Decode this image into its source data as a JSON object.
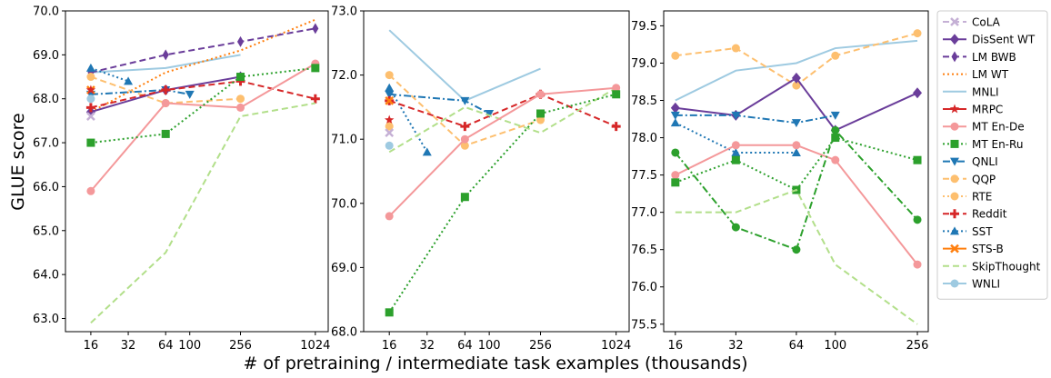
{
  "chart_data": {
    "type": "line",
    "ylabel": "GLUE score",
    "xlabel": "# of pretraining / intermediate task examples (thousands)",
    "x_scale": "log",
    "legend_placement": "right",
    "legend": [
      {
        "name": "CoLA",
        "color": "#c5b0d5",
        "dash": "dashed",
        "marker": "x"
      },
      {
        "name": "DisSent WT",
        "color": "#6a3d9a",
        "dash": "solid",
        "marker": "diamond"
      },
      {
        "name": "LM BWB",
        "color": "#6a3d9a",
        "dash": "dashed",
        "marker": "thin_diamond"
      },
      {
        "name": "LM WT",
        "color": "#ff7f0e",
        "dash": "dotted",
        "marker": "none"
      },
      {
        "name": "MNLI",
        "color": "#9ecae1",
        "dash": "solid",
        "marker": "none"
      },
      {
        "name": "MRPC",
        "color": "#d62728",
        "dash": "solid",
        "marker": "star"
      },
      {
        "name": "MT En-De",
        "color": "#f4989a",
        "dash": "solid",
        "marker": "circle"
      },
      {
        "name": "MT En-Ru",
        "color": "#2ca02c",
        "dash": "dotted",
        "marker": "square"
      },
      {
        "name": "QNLI",
        "color": "#1f77b4",
        "dash": "dashdot",
        "marker": "triangle_down"
      },
      {
        "name": "QQP",
        "color": "#fdbf6f",
        "dash": "dashed",
        "marker": "circle"
      },
      {
        "name": "RTE",
        "color": "#fdbf6f",
        "dash": "dotted",
        "marker": "circle"
      },
      {
        "name": "Reddit",
        "color": "#d62728",
        "dash": "dashed",
        "marker": "plus"
      },
      {
        "name": "SST",
        "color": "#1f77b4",
        "dash": "dotted",
        "marker": "triangle_up"
      },
      {
        "name": "STS-B",
        "color": "#ff7f0e",
        "dash": "solid",
        "marker": "x"
      },
      {
        "name": "SkipThought",
        "color": "#b2df8a",
        "dash": "dashed",
        "marker": "none"
      },
      {
        "name": "WNLI",
        "color": "#9ecae1",
        "dash": "solid",
        "marker": "circle"
      }
    ],
    "panels": [
      {
        "xticks": [
          16,
          32,
          64,
          100,
          256,
          1024
        ],
        "xlim": [
          10,
          1300
        ],
        "ylim": [
          62.7,
          70.0
        ],
        "yticks": [
          63.0,
          64.0,
          65.0,
          66.0,
          67.0,
          68.0,
          69.0,
          70.0
        ],
        "series": [
          {
            "ref": "MNLI",
            "x": [
              16,
              64,
              256
            ],
            "y": [
              68.6,
              68.7,
              69.0
            ]
          },
          {
            "ref": "LM WT",
            "x": [
              16,
              64,
              256,
              1024
            ],
            "y": [
              67.7,
              68.6,
              69.1,
              69.8
            ]
          },
          {
            "ref": "LM BWB",
            "x": [
              16,
              64,
              256,
              1024
            ],
            "y": [
              68.6,
              69.0,
              69.3,
              69.6
            ]
          },
          {
            "ref": "QQP",
            "x": [
              16,
              64,
              256
            ],
            "y": [
              68.5,
              67.9,
              68.0
            ]
          },
          {
            "ref": "QNLI",
            "x": [
              16,
              64,
              100
            ],
            "y": [
              68.1,
              68.2,
              68.1
            ]
          },
          {
            "ref": "SST",
            "x": [
              16,
              32
            ],
            "y": [
              68.7,
              68.4
            ]
          },
          {
            "ref": "DisSent WT",
            "x": [
              16,
              64,
              256
            ],
            "y": [
              67.7,
              68.2,
              68.5
            ]
          },
          {
            "ref": "Reddit",
            "x": [
              16,
              64,
              256,
              1024
            ],
            "y": [
              67.8,
              68.2,
              68.4,
              68.0
            ]
          },
          {
            "ref": "MT En-De",
            "x": [
              16,
              64,
              256,
              1024
            ],
            "y": [
              65.9,
              67.9,
              67.8,
              68.8
            ]
          },
          {
            "ref": "MT En-Ru",
            "x": [
              16,
              64,
              256,
              1024
            ],
            "y": [
              67.0,
              67.2,
              68.5,
              68.7
            ]
          },
          {
            "ref": "SkipThought",
            "x": [
              16,
              64,
              256,
              1024
            ],
            "y": [
              62.9,
              64.5,
              67.6,
              67.9
            ]
          },
          {
            "ref": "STS-B",
            "x": [
              16
            ],
            "y": [
              68.2
            ]
          },
          {
            "ref": "MRPC",
            "x": [
              16
            ],
            "y": [
              68.2
            ]
          },
          {
            "ref": "CoLA",
            "x": [
              16
            ],
            "y": [
              67.6
            ]
          },
          {
            "ref": "WNLI",
            "x": [
              16
            ],
            "y": [
              68.0
            ]
          }
        ]
      },
      {
        "xticks": [
          16,
          32,
          64,
          100,
          256,
          1024
        ],
        "xlim": [
          10,
          1300
        ],
        "ylim": [
          68.0,
          73.0
        ],
        "yticks": [
          68.0,
          69.0,
          70.0,
          71.0,
          72.0,
          73.0
        ],
        "series": [
          {
            "ref": "MNLI",
            "x": [
              16,
              64,
              256
            ],
            "y": [
              72.7,
              71.6,
              72.1
            ]
          },
          {
            "ref": "QQP",
            "x": [
              16,
              64,
              256
            ],
            "y": [
              72.0,
              70.9,
              71.3
            ]
          },
          {
            "ref": "QNLI",
            "x": [
              16,
              64,
              100
            ],
            "y": [
              71.7,
              71.6,
              71.4
            ]
          },
          {
            "ref": "SST",
            "x": [
              16,
              32
            ],
            "y": [
              71.8,
              70.8
            ]
          },
          {
            "ref": "Reddit",
            "x": [
              16,
              64,
              256,
              1024
            ],
            "y": [
              71.6,
              71.2,
              71.7,
              71.2
            ]
          },
          {
            "ref": "SkipThought",
            "x": [
              16,
              64,
              256,
              1024
            ],
            "y": [
              70.8,
              71.5,
              71.1,
              71.8
            ]
          },
          {
            "ref": "MT En-De",
            "x": [
              16,
              64,
              256,
              1024
            ],
            "y": [
              69.8,
              71.0,
              71.7,
              71.8
            ]
          },
          {
            "ref": "MT En-Ru",
            "x": [
              16,
              64,
              256,
              1024
            ],
            "y": [
              68.3,
              70.1,
              71.4,
              71.7
            ]
          },
          {
            "ref": "STS-B",
            "x": [
              16
            ],
            "y": [
              71.6
            ]
          },
          {
            "ref": "MRPC",
            "x": [
              16
            ],
            "y": [
              71.3
            ]
          },
          {
            "ref": "RTE",
            "x": [
              16
            ],
            "y": [
              71.2
            ]
          },
          {
            "ref": "CoLA",
            "x": [
              16
            ],
            "y": [
              71.1
            ]
          },
          {
            "ref": "WNLI",
            "x": [
              16
            ],
            "y": [
              70.9
            ]
          }
        ]
      },
      {
        "xticks": [
          16,
          32,
          64,
          100,
          256
        ],
        "xlim": [
          14,
          290
        ],
        "ylim": [
          75.4,
          79.7
        ],
        "yticks": [
          75.5,
          76.0,
          76.5,
          77.0,
          77.5,
          78.0,
          78.5,
          79.0,
          79.5
        ],
        "series": [
          {
            "ref": "MNLI",
            "x": [
              16,
              32,
              64,
              100,
              256
            ],
            "y": [
              78.5,
              78.9,
              79.0,
              79.2,
              79.3
            ]
          },
          {
            "ref": "QQP",
            "x": [
              16,
              32,
              64,
              100,
              256
            ],
            "y": [
              79.1,
              79.2,
              78.7,
              79.1,
              79.4
            ]
          },
          {
            "ref": "DisSent WT",
            "x": [
              16,
              32,
              64,
              100,
              256
            ],
            "y": [
              78.4,
              78.3,
              78.8,
              78.1,
              78.6
            ]
          },
          {
            "ref": "QNLI",
            "x": [
              16,
              32,
              64,
              100
            ],
            "y": [
              78.3,
              78.3,
              78.2,
              78.3
            ]
          },
          {
            "ref": "SST",
            "x": [
              16,
              32,
              64
            ],
            "y": [
              78.2,
              77.8,
              77.8
            ]
          },
          {
            "ref": "MT En-De",
            "x": [
              16,
              32,
              64,
              100,
              256
            ],
            "y": [
              77.5,
              77.9,
              77.9,
              77.7,
              76.3
            ]
          },
          {
            "ref": "MT En-Ru",
            "x": [
              16,
              32,
              64,
              100,
              256
            ],
            "y": [
              77.4,
              77.7,
              77.3,
              78.0,
              77.7
            ]
          },
          {
            "ref": "MT En-Ru",
            "x": [
              16,
              32,
              64,
              100,
              256
            ],
            "y": [
              77.8,
              76.8,
              76.5,
              78.1,
              76.9
            ],
            "dash": "dashdot",
            "marker": "circle"
          },
          {
            "ref": "SkipThought",
            "x": [
              16,
              32,
              64,
              100,
              256
            ],
            "y": [
              77.0,
              77.0,
              77.3,
              76.3,
              75.5
            ]
          }
        ]
      }
    ]
  }
}
